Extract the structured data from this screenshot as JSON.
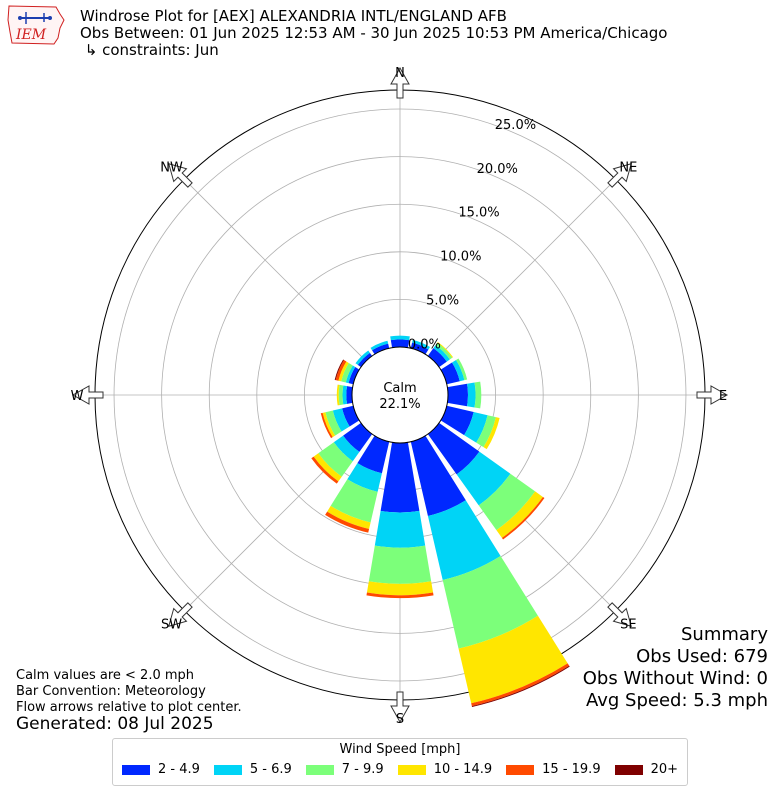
{
  "header": {
    "title": "Windrose Plot for [AEX] ALEXANDRIA INTL/ENGLAND AFB",
    "obs_between": "Obs Between: 01 Jun 2025 12:53 AM - 30 Jun 2025 10:53 PM America/Chicago",
    "constraints": " ↳ constraints: Jun",
    "logo_text": "IEM"
  },
  "chart_data": {
    "type": "windrose",
    "directions": [
      "N",
      "NNE",
      "NE",
      "ENE",
      "E",
      "ESE",
      "SE",
      "SSE",
      "S",
      "SSW",
      "SW",
      "WSW",
      "W",
      "WNW",
      "NW",
      "NNW"
    ],
    "compass_labels": [
      "N",
      "NE",
      "E",
      "SE",
      "S",
      "SW",
      "W",
      "NW"
    ],
    "radial_ticks": [
      "0.0%",
      "5.0%",
      "10.0%",
      "15.0%",
      "20.0%",
      "25.0%"
    ],
    "radial_max": 27,
    "calm": {
      "label": "Calm",
      "value": "22.1%"
    },
    "bins": [
      {
        "name": "2 - 4.9",
        "color": "#0028ff"
      },
      {
        "name": "5 - 6.9",
        "color": "#00d4f6"
      },
      {
        "name": "7 - 9.9",
        "color": "#7cff7a"
      },
      {
        "name": "10 - 14.9",
        "color": "#ffe600"
      },
      {
        "name": "15 - 19.9",
        "color": "#ff4a00"
      },
      {
        "name": "20+",
        "color": "#7f0000"
      }
    ],
    "values": {
      "N": [
        0.8,
        0.4,
        0.0,
        0.0,
        0.0,
        0.0
      ],
      "NNE": [
        0.6,
        0.3,
        0.0,
        0.0,
        0.0,
        0.0
      ],
      "NE": [
        1.0,
        0.4,
        0.3,
        0.1,
        0.0,
        0.0
      ],
      "ENE": [
        1.4,
        0.5,
        0.3,
        0.0,
        0.0,
        0.0
      ],
      "E": [
        2.1,
        0.8,
        0.6,
        0.0,
        0.0,
        0.0
      ],
      "ESE": [
        2.9,
        1.5,
        0.9,
        0.4,
        0.0,
        0.0
      ],
      "SE": [
        5.2,
        4.0,
        3.2,
        1.0,
        0.2,
        0.0
      ],
      "SSE": [
        8.0,
        6.9,
        7.4,
        5.9,
        0.3,
        0.1
      ],
      "S": [
        7.3,
        3.7,
        3.8,
        1.2,
        0.3,
        0.0
      ],
      "SSW": [
        3.4,
        2.0,
        3.3,
        0.7,
        0.4,
        0.0
      ],
      "SW": [
        2.3,
        1.2,
        2.0,
        0.6,
        0.3,
        0.0
      ],
      "WSW": [
        1.2,
        1.0,
        0.8,
        0.3,
        0.2,
        0.0
      ],
      "W": [
        0.6,
        0.4,
        0.4,
        0.2,
        0.0,
        0.0
      ],
      "WNW": [
        0.5,
        0.3,
        0.5,
        0.3,
        0.3,
        0.1
      ],
      "NW": [
        0.4,
        0.3,
        0.0,
        0.0,
        0.0,
        0.0
      ],
      "NNW": [
        0.5,
        0.3,
        0.0,
        0.0,
        0.0,
        0.0
      ]
    }
  },
  "summary": {
    "title": "Summary",
    "obs_used": "Obs Used: 679",
    "obs_without_wind": "Obs Without Wind: 0",
    "avg_speed": "Avg Speed: 5.3 mph"
  },
  "notes": {
    "calm": "Calm values are < 2.0 mph",
    "convention": "Bar Convention: Meteorology",
    "arrows": "Flow arrows relative to plot center.",
    "generated": "Generated: 08 Jul 2025"
  },
  "legend": {
    "title": "Wind Speed [mph]",
    "items": [
      {
        "label": "2 - 4.9",
        "color": "#0028ff"
      },
      {
        "label": "5 - 6.9",
        "color": "#00d4f6"
      },
      {
        "label": "7 - 9.9",
        "color": "#7cff7a"
      },
      {
        "label": "10 - 14.9",
        "color": "#ffe600"
      },
      {
        "label": "15 - 19.9",
        "color": "#ff4a00"
      },
      {
        "label": "20+",
        "color": "#7f0000"
      }
    ]
  }
}
